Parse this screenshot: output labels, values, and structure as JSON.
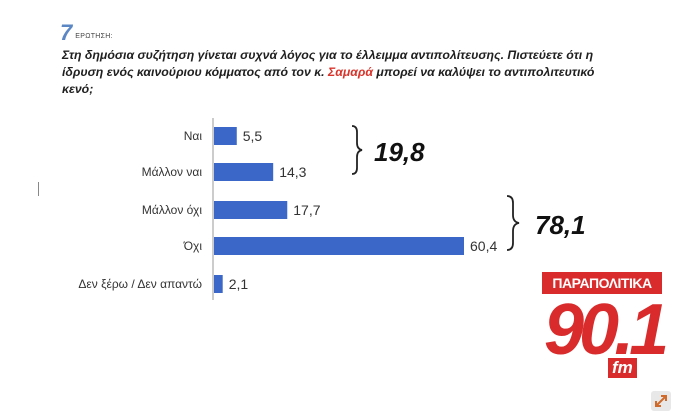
{
  "header": {
    "number": "7",
    "label": "ΕΡΩΤΗΣΗ:"
  },
  "question": {
    "before": "Στη δημόσια συζήτηση γίνεται συχνά λόγος για το έλλειμμα αντιπολίτευσης. Πιστεύετε ότι η ίδρυση ενός καινούριου κόμματος από τον κ. ",
    "highlight": "Σαμαρά",
    "after": " μπορεί να καλύψει το αντιπολιτευτικό κενό;"
  },
  "chart_data": {
    "type": "bar",
    "orientation": "horizontal",
    "categories": [
      "Ναι",
      "Μάλλον ναι",
      "Μάλλον όχι",
      "Όχι",
      "Δεν ξέρω / Δεν απαντώ"
    ],
    "values": [
      5.5,
      14.3,
      17.7,
      60.4,
      2.1
    ],
    "value_labels": [
      "5,5",
      "14,3",
      "17,7",
      "60,4",
      "2,1"
    ],
    "bar_color": "#3a67c8",
    "xlim": [
      0,
      60.4
    ],
    "grid": false,
    "legend": "none",
    "groups": [
      {
        "label": "19,8",
        "categories": [
          "Ναι",
          "Μάλλον ναι"
        ]
      },
      {
        "label": "78,1",
        "categories": [
          "Μάλλον όχι",
          "Όχι"
        ]
      }
    ]
  },
  "logo": {
    "name": "ΠΑΡΑΠΟΛΙΤΙΚΑ",
    "frequency": "90.1",
    "band": "fm",
    "color": "#d92b2b"
  },
  "expand_icon": "expand-diagonal-icon"
}
